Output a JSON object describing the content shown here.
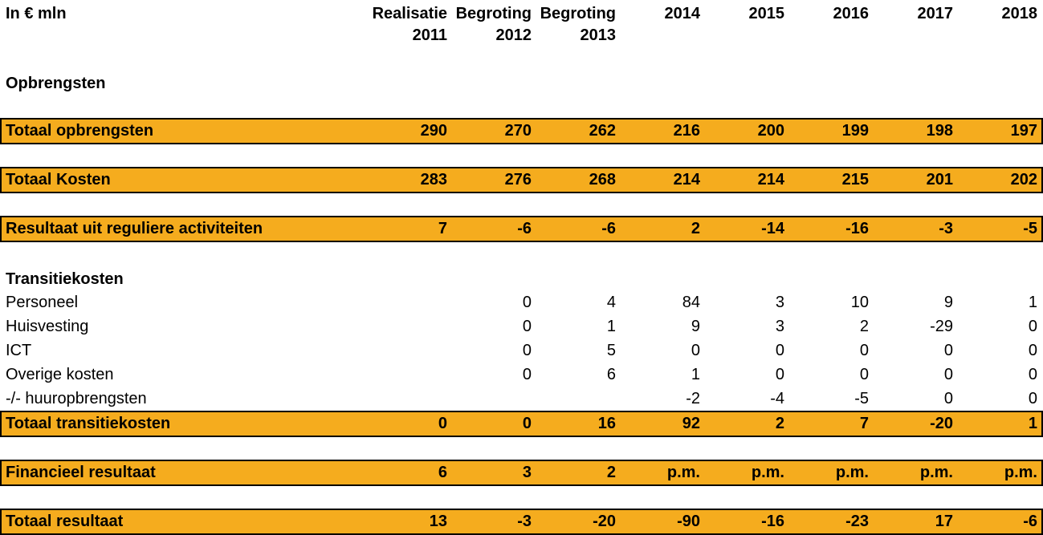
{
  "header": {
    "unit_label": "In € mln",
    "columns": [
      {
        "line1": "Realisatie",
        "line2": "2011"
      },
      {
        "line1": "Begroting",
        "line2": "2012"
      },
      {
        "line1": "Begroting",
        "line2": "2013"
      },
      {
        "line1": "2014",
        "line2": ""
      },
      {
        "line1": "2015",
        "line2": ""
      },
      {
        "line1": "2016",
        "line2": ""
      },
      {
        "line1": "2017",
        "line2": ""
      },
      {
        "line1": "2018",
        "line2": ""
      }
    ]
  },
  "table": {
    "rows": [
      {
        "type": "section",
        "label": "Opbrengsten",
        "values": [
          "",
          "",
          "",
          "",
          "",
          "",
          "",
          ""
        ]
      },
      {
        "type": "highlight",
        "label": "Totaal opbrengsten",
        "values": [
          "290",
          "270",
          "262",
          "216",
          "200",
          "199",
          "198",
          "197"
        ]
      },
      {
        "type": "highlight",
        "label": "Totaal Kosten",
        "values": [
          "283",
          "276",
          "268",
          "214",
          "214",
          "215",
          "201",
          "202"
        ]
      },
      {
        "type": "highlight",
        "label": "Resultaat uit reguliere activiteiten",
        "values": [
          "7",
          "-6",
          "-6",
          "2",
          "-14",
          "-16",
          "-3",
          "-5"
        ]
      },
      {
        "type": "section",
        "label": "Transitiekosten",
        "values": [
          "",
          "",
          "",
          "",
          "",
          "",
          "",
          ""
        ]
      },
      {
        "type": "detail",
        "label": "Personeel",
        "values": [
          "",
          "0",
          "4",
          "84",
          "3",
          "10",
          "9",
          "1"
        ]
      },
      {
        "type": "detail",
        "label": "Huisvesting",
        "values": [
          "",
          "0",
          "1",
          "9",
          "3",
          "2",
          "-29",
          "0"
        ]
      },
      {
        "type": "detail",
        "label": "ICT",
        "values": [
          "",
          "0",
          "5",
          "0",
          "0",
          "0",
          "0",
          "0"
        ]
      },
      {
        "type": "detail",
        "label": "Overige kosten",
        "values": [
          "",
          "0",
          "6",
          "1",
          "0",
          "0",
          "0",
          "0"
        ]
      },
      {
        "type": "detail",
        "label": "-/- huuropbrengsten",
        "values": [
          "",
          "",
          "",
          "-2",
          "-4",
          "-5",
          "0",
          "0"
        ]
      },
      {
        "type": "highlight",
        "label": "Totaal transitiekosten",
        "values": [
          "0",
          "0",
          "16",
          "92",
          "2",
          "7",
          "-20",
          "1"
        ]
      },
      {
        "type": "highlight",
        "label": "Financieel resultaat",
        "values": [
          "6",
          "3",
          "2",
          "p.m.",
          "p.m.",
          "p.m.",
          "p.m.",
          "p.m."
        ]
      },
      {
        "type": "highlight",
        "label": "Totaal resultaat",
        "values": [
          "13",
          "-3",
          "-20",
          "-90",
          "-16",
          "-23",
          "17",
          "-6"
        ]
      }
    ]
  },
  "colors": {
    "highlight_fill": "#F5AC1E",
    "highlight_border": "#000000",
    "text": "#000000",
    "background": "#FFFFFF"
  }
}
